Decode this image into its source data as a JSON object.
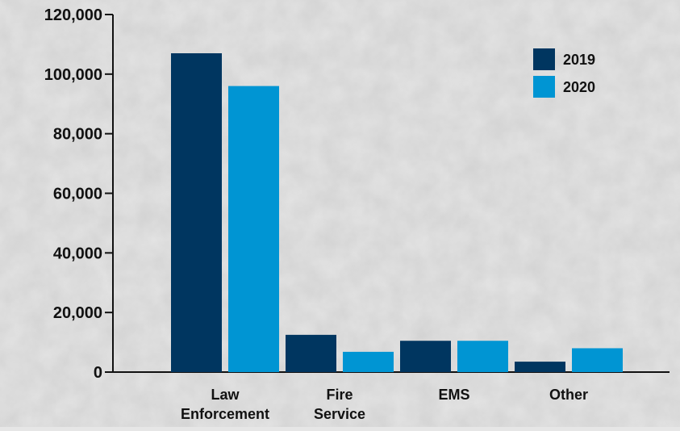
{
  "chart_data": {
    "type": "bar",
    "categories": [
      [
        "Law",
        "Enforcement"
      ],
      [
        "Fire",
        "Service"
      ],
      [
        "EMS"
      ],
      [
        "Other"
      ]
    ],
    "series": [
      {
        "name": "2019",
        "color": "#003660",
        "values": [
          107000,
          12500,
          10500,
          3500
        ]
      },
      {
        "name": "2020",
        "color": "#0095d3",
        "values": [
          96000,
          6800,
          10500,
          8000
        ]
      }
    ],
    "ylim": [
      0,
      120000
    ],
    "yticks": [
      0,
      20000,
      40000,
      60000,
      80000,
      100000,
      120000
    ],
    "ytick_labels": [
      "0",
      "20,000",
      "40,000",
      "60,000",
      "80,000",
      "100,000",
      "120,000"
    ],
    "title": "",
    "xlabel": "",
    "ylabel": "",
    "grid": false,
    "legend_position": "top-right"
  }
}
